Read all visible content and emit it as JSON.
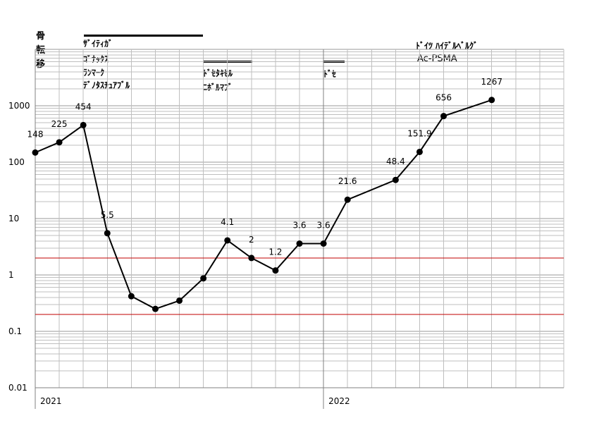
{
  "title_chars": [
    "骨",
    "転",
    "移"
  ],
  "treatments": [
    {
      "labels": [
        "ｻﾞｲﾃｨｶﾞ",
        "ｺﾞﾅｯｸｽ",
        "ﾗﾝﾏｰｸ",
        "ﾃﾞﾉﾀｽﾁｭｱﾌﾞﾙ"
      ]
    },
    {
      "labels": [
        "ﾄﾞｾﾀｷｾﾙ",
        "ﾆﾎﾞﾙﾏﾌﾞ"
      ]
    },
    {
      "labels": [
        "ﾄﾞｾ"
      ]
    }
  ],
  "note": [
    "ﾄﾞｲﾂ ﾊｲﾃﾞﾙﾍﾞﾙｸﾞ",
    "Ac-PSMA"
  ],
  "chart_data": {
    "type": "line",
    "yscale": "log",
    "ylim": [
      0.01,
      10000
    ],
    "ytick_labels": [
      "1000",
      "100",
      "10",
      "1",
      "0.1",
      "0.01"
    ],
    "year_labels": [
      "2021",
      "2022"
    ],
    "series": [
      {
        "values": [
          148,
          225,
          454,
          5.5,
          0.42,
          0.25,
          0.35,
          0.87,
          4.1,
          2.0,
          1.2,
          3.6,
          3.6,
          21.6,
          null,
          48.4,
          151.9,
          656,
          null,
          1267
        ],
        "labels": [
          "148",
          "225",
          "454",
          "5.5",
          "",
          "",
          "",
          "",
          "4.1",
          "2",
          "1.2",
          "3.6",
          "3.6",
          "21.6",
          "",
          "48.4",
          "151.9",
          "656",
          "",
          "1267"
        ]
      }
    ],
    "reference_lines": [
      2,
      0.2
    ],
    "grid": true,
    "colors": {
      "line": "#000000",
      "reference": "#c00000",
      "grid_major": "#999999",
      "grid_minor": "#bfbfbf"
    }
  }
}
